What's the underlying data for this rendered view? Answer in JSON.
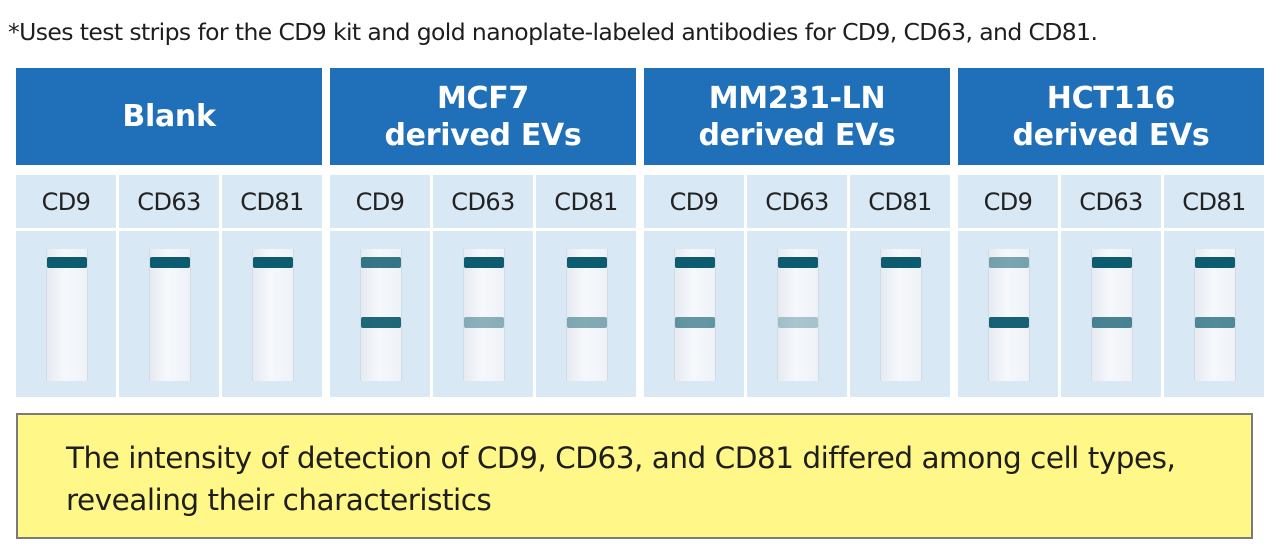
{
  "note": "*Uses test strips for the CD9 kit and gold nanoplate-labeled antibodies for CD9, CD63, and CD81.",
  "groups": [
    {
      "lines": [
        "Blank"
      ],
      "strips": [
        {
          "marker": "CD9",
          "test_line": 0.0,
          "control_line": 1.0
        },
        {
          "marker": "CD63",
          "test_line": 0.0,
          "control_line": 1.0
        },
        {
          "marker": "CD81",
          "test_line": 0.0,
          "control_line": 1.0
        }
      ]
    },
    {
      "lines": [
        "MCF7",
        "derived EVs"
      ],
      "strips": [
        {
          "marker": "CD9",
          "test_line": 0.9,
          "control_line": 0.8
        },
        {
          "marker": "CD63",
          "test_line": 0.35,
          "control_line": 1.0
        },
        {
          "marker": "CD81",
          "test_line": 0.4,
          "control_line": 1.0
        }
      ]
    },
    {
      "lines": [
        "MM231-LN",
        "derived EVs"
      ],
      "strips": [
        {
          "marker": "CD9",
          "test_line": 0.55,
          "control_line": 1.0
        },
        {
          "marker": "CD63",
          "test_line": 0.2,
          "control_line": 1.0
        },
        {
          "marker": "CD81",
          "test_line": 0.0,
          "control_line": 1.0
        }
      ]
    },
    {
      "lines": [
        "HCT116",
        "derived EVs"
      ],
      "strips": [
        {
          "marker": "CD9",
          "test_line": 0.95,
          "control_line": 0.45
        },
        {
          "marker": "CD63",
          "test_line": 0.7,
          "control_line": 1.0
        },
        {
          "marker": "CD81",
          "test_line": 0.65,
          "control_line": 1.0
        }
      ]
    }
  ],
  "summary_lines": [
    "The intensity of detection of CD9, CD63, and CD81 differed among cell types,",
    "revealing their characteristics"
  ],
  "colors": {
    "header_bg": "#1f6fb9",
    "cell_bg": "#d8e8f5",
    "band_color": "#0c5b6e",
    "summary_bg": "#fff788"
  }
}
